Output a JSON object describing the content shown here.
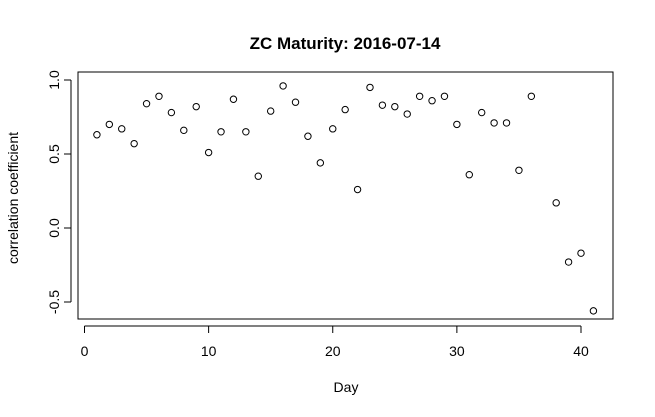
{
  "chart_data": {
    "type": "scatter",
    "title": "ZC Maturity: 2016-07-14",
    "xlabel": "Day",
    "ylabel": "correlation coefficient",
    "xlim": [
      0,
      42.5
    ],
    "ylim": [
      -0.6,
      1.0
    ],
    "xticks": [
      0,
      10,
      20,
      30,
      40
    ],
    "yticks": [
      -0.5,
      0.0,
      0.5,
      1.0
    ],
    "xtick_labels": [
      "0",
      "10",
      "20",
      "30",
      "40"
    ],
    "ytick_labels": [
      "-0.5",
      "0.0",
      "0.5",
      "1.0"
    ],
    "grid": false,
    "marker": "open-circle",
    "x": [
      1,
      2,
      3,
      4,
      5,
      6,
      7,
      8,
      9,
      10,
      11,
      12,
      13,
      14,
      15,
      16,
      17,
      18,
      19,
      20,
      21,
      22,
      23,
      24,
      25,
      26,
      27,
      28,
      29,
      30,
      31,
      32,
      33,
      34,
      35,
      36,
      38,
      39,
      40,
      41
    ],
    "y": [
      0.63,
      0.7,
      0.67,
      0.57,
      0.84,
      0.89,
      0.78,
      0.66,
      0.82,
      0.51,
      0.65,
      0.87,
      0.65,
      0.35,
      0.79,
      0.96,
      0.85,
      0.62,
      0.44,
      0.67,
      0.8,
      0.26,
      0.95,
      0.83,
      0.82,
      0.77,
      0.89,
      0.86,
      0.89,
      0.7,
      0.36,
      0.78,
      0.71,
      0.71,
      0.39,
      0.89,
      0.17,
      -0.23,
      -0.17,
      -0.56
    ]
  }
}
